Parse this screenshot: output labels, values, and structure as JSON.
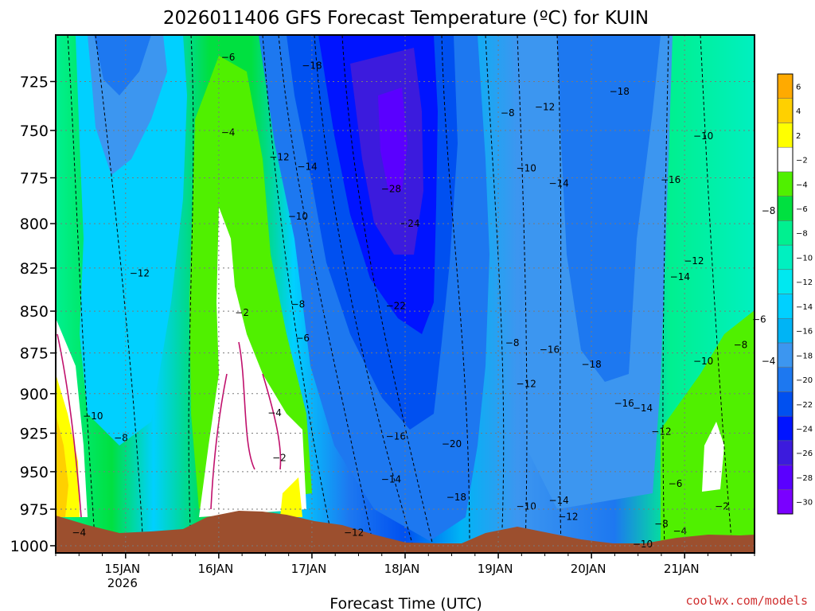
{
  "chart_data": {
    "type": "contour",
    "title": "2026011406 GFS Forecast Temperature (ºC) for KUIN",
    "xlabel": "Forecast Time (UTC)",
    "ylabel": "",
    "x_tick_labels": [
      "15JAN",
      "16JAN",
      "17JAN",
      "18JAN",
      "19JAN",
      "20JAN",
      "21JAN"
    ],
    "x_tick_sublabel": "2026",
    "xlim_days": [
      14.25,
      21.75
    ],
    "y_ticks": [
      725,
      750,
      775,
      800,
      825,
      850,
      875,
      900,
      925,
      950,
      975,
      1000
    ],
    "ylim_hpa": [
      1005,
      702
    ],
    "colorbar": {
      "levels": [
        -30,
        -28,
        -26,
        -24,
        -22,
        -20,
        -18,
        -16,
        -14,
        -12,
        -10,
        -8,
        -6,
        -4,
        -2,
        2,
        4,
        6
      ],
      "colors": [
        "#7a00ff",
        "#5a00ff",
        "#3c1bdd",
        "#0014ff",
        "#0050f0",
        "#1d78f0",
        "#3c96f0",
        "#00b4f5",
        "#00d0ff",
        "#00e8f0",
        "#00f0c0",
        "#00f090",
        "#00e040",
        "#50f000",
        "#ffffff",
        "#ffff00",
        "#ffd000",
        "#ffaa00"
      ]
    },
    "contour_labels": [
      {
        "day": 16.1,
        "p": 713,
        "t": -6
      },
      {
        "day": 17.0,
        "p": 717,
        "t": -18
      },
      {
        "day": 20.3,
        "p": 730,
        "t": -18
      },
      {
        "day": 16.1,
        "p": 751,
        "t": -4
      },
      {
        "day": 16.65,
        "p": 764,
        "t": -12
      },
      {
        "day": 16.95,
        "p": 769,
        "t": -14
      },
      {
        "day": 17.85,
        "p": 781,
        "t": -28
      },
      {
        "day": 18.05,
        "p": 800,
        "t": -24
      },
      {
        "day": 16.85,
        "p": 796,
        "t": -10
      },
      {
        "day": 15.15,
        "p": 828,
        "t": -12
      },
      {
        "day": 16.25,
        "p": 851,
        "t": -2
      },
      {
        "day": 16.85,
        "p": 846,
        "t": -8
      },
      {
        "day": 16.9,
        "p": 866,
        "t": -6
      },
      {
        "day": 17.9,
        "p": 847,
        "t": -22
      },
      {
        "day": 19.1,
        "p": 741,
        "t": -8
      },
      {
        "day": 19.5,
        "p": 738,
        "t": -12
      },
      {
        "day": 19.3,
        "p": 770,
        "t": -10
      },
      {
        "day": 19.65,
        "p": 778,
        "t": -14
      },
      {
        "day": 20.85,
        "p": 776,
        "t": -16
      },
      {
        "day": 21.2,
        "p": 753,
        "t": -10
      },
      {
        "day": 21.9,
        "p": 793,
        "t": -8
      },
      {
        "day": 21.1,
        "p": 821,
        "t": -12
      },
      {
        "day": 20.95,
        "p": 830,
        "t": -14
      },
      {
        "day": 21.8,
        "p": 855,
        "t": -6
      },
      {
        "day": 21.6,
        "p": 870,
        "t": -8
      },
      {
        "day": 21.2,
        "p": 880,
        "t": -10
      },
      {
        "day": 21.9,
        "p": 880,
        "t": -4
      },
      {
        "day": 19.15,
        "p": 869,
        "t": -8
      },
      {
        "day": 19.55,
        "p": 873,
        "t": -16
      },
      {
        "day": 20.0,
        "p": 882,
        "t": -18
      },
      {
        "day": 19.3,
        "p": 894,
        "t": -12
      },
      {
        "day": 20.35,
        "p": 906,
        "t": -16
      },
      {
        "day": 20.55,
        "p": 909,
        "t": -14
      },
      {
        "day": 20.75,
        "p": 924,
        "t": -12
      },
      {
        "day": 16.6,
        "p": 912,
        "t": -4
      },
      {
        "day": 16.65,
        "p": 941,
        "t": -2
      },
      {
        "day": 14.65,
        "p": 914,
        "t": -10
      },
      {
        "day": 14.95,
        "p": 928,
        "t": -8
      },
      {
        "day": 17.9,
        "p": 927,
        "t": -16
      },
      {
        "day": 18.5,
        "p": 932,
        "t": -20
      },
      {
        "day": 17.85,
        "p": 955,
        "t": -14
      },
      {
        "day": 18.55,
        "p": 967,
        "t": -18
      },
      {
        "day": 19.3,
        "p": 973,
        "t": -10
      },
      {
        "day": 19.65,
        "p": 969,
        "t": -14
      },
      {
        "day": 19.75,
        "p": 980,
        "t": -12
      },
      {
        "day": 20.9,
        "p": 958,
        "t": -6
      },
      {
        "day": 20.75,
        "p": 985,
        "t": -8
      },
      {
        "day": 20.95,
        "p": 990,
        "t": -4
      },
      {
        "day": 21.4,
        "p": 973,
        "t": -2
      },
      {
        "day": 14.5,
        "p": 991,
        "t": -4
      },
      {
        "day": 17.45,
        "p": 991,
        "t": -12
      },
      {
        "day": 20.55,
        "p": 999,
        "t": -10
      }
    ]
  },
  "credit": "coolwx.com/models"
}
